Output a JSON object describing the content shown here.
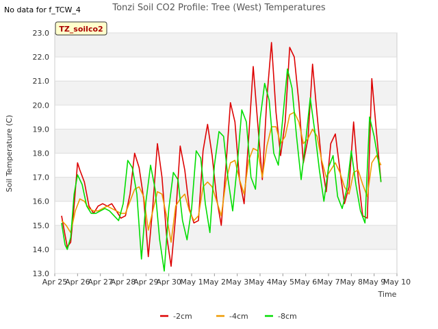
{
  "status_text": "No data for f_TCW_4",
  "badge_label": "TZ_soilco2",
  "chart_data": {
    "type": "line",
    "title": "Tonzi Soil CO2 Profile: Tree (West) Temperatures",
    "xlabel": "Time",
    "ylabel": "Soil Temperature (C)",
    "ylim": [
      13.0,
      23.0
    ],
    "xlim": [
      0,
      15
    ],
    "yticks": [
      "13.0",
      "14.0",
      "15.0",
      "16.0",
      "17.0",
      "18.0",
      "19.0",
      "20.0",
      "21.0",
      "22.0",
      "23.0"
    ],
    "xticks": [
      "Apr 25",
      "Apr 26",
      "Apr 27",
      "Apr 28",
      "Apr 29",
      "Apr 30",
      "May 1",
      "May 2",
      "May 3",
      "May 4",
      "May 5",
      "May 6",
      "May 7",
      "May 8",
      "May 9",
      "May 10"
    ],
    "grid": true,
    "legend_position": "bottom",
    "series": [
      {
        "name": "-2cm",
        "color": "#dd0000",
        "x": [
          0.3,
          0.45,
          0.55,
          0.7,
          0.85,
          1.0,
          1.1,
          1.3,
          1.5,
          1.7,
          1.9,
          2.1,
          2.3,
          2.5,
          2.7,
          2.9,
          3.1,
          3.3,
          3.5,
          3.7,
          3.9,
          4.1,
          4.3,
          4.5,
          4.7,
          4.9,
          5.1,
          5.3,
          5.5,
          5.7,
          5.9,
          6.1,
          6.3,
          6.5,
          6.7,
          6.9,
          7.1,
          7.3,
          7.5,
          7.7,
          7.9,
          8.1,
          8.3,
          8.5,
          8.7,
          8.9,
          9.1,
          9.3,
          9.5,
          9.7,
          9.9,
          10.1,
          10.3,
          10.5,
          10.7,
          10.9,
          11.1,
          11.3,
          11.5,
          11.7,
          11.9,
          12.1,
          12.3,
          12.5,
          12.7,
          12.9,
          13.1,
          13.3,
          13.5,
          13.7,
          13.9,
          14.1,
          14.3
        ],
        "y": [
          15.4,
          14.6,
          14.1,
          14.3,
          15.8,
          17.6,
          17.3,
          16.8,
          15.8,
          15.5,
          15.8,
          15.9,
          15.8,
          15.9,
          15.6,
          15.3,
          15.4,
          16.3,
          18.0,
          17.4,
          16.1,
          13.7,
          15.8,
          18.4,
          17.0,
          14.6,
          13.3,
          15.4,
          18.3,
          17.3,
          15.7,
          15.1,
          15.2,
          18.1,
          19.2,
          17.9,
          16.1,
          15.0,
          17.4,
          20.1,
          19.3,
          16.9,
          15.9,
          18.6,
          21.6,
          19.2,
          16.9,
          20.3,
          22.6,
          19.7,
          17.9,
          19.3,
          22.4,
          22.0,
          20.1,
          17.6,
          18.6,
          21.7,
          19.6,
          17.6,
          16.4,
          18.4,
          18.8,
          17.3,
          15.9,
          16.6,
          19.3,
          17.0,
          15.4,
          15.3,
          21.1,
          18.9,
          16.8
        ]
      },
      {
        "name": "-4cm",
        "color": "#ee9900",
        "x": [
          0.3,
          0.5,
          0.7,
          0.9,
          1.1,
          1.3,
          1.5,
          1.7,
          1.9,
          2.1,
          2.3,
          2.5,
          2.7,
          2.9,
          3.1,
          3.3,
          3.5,
          3.7,
          3.9,
          4.1,
          4.3,
          4.5,
          4.7,
          4.9,
          5.1,
          5.3,
          5.5,
          5.7,
          5.9,
          6.1,
          6.3,
          6.5,
          6.7,
          6.9,
          7.1,
          7.3,
          7.5,
          7.7,
          7.9,
          8.1,
          8.3,
          8.5,
          8.7,
          8.9,
          9.1,
          9.3,
          9.5,
          9.7,
          9.9,
          10.1,
          10.3,
          10.5,
          10.7,
          10.9,
          11.1,
          11.3,
          11.5,
          11.7,
          11.9,
          12.1,
          12.3,
          12.5,
          12.7,
          12.9,
          13.1,
          13.3,
          13.5,
          13.7,
          13.9,
          14.1,
          14.3
        ],
        "y": [
          15.2,
          15.0,
          14.7,
          15.6,
          16.1,
          16.0,
          15.7,
          15.6,
          15.6,
          15.7,
          15.8,
          15.7,
          15.6,
          15.5,
          15.5,
          16.0,
          16.5,
          16.6,
          16.2,
          14.8,
          15.6,
          16.4,
          16.3,
          15.4,
          14.3,
          15.8,
          16.1,
          16.3,
          15.6,
          15.2,
          15.4,
          16.6,
          16.8,
          16.6,
          16.0,
          15.4,
          16.8,
          17.6,
          17.7,
          16.9,
          16.3,
          17.7,
          18.2,
          18.1,
          17.0,
          18.3,
          19.1,
          19.1,
          18.4,
          18.7,
          19.6,
          19.7,
          19.3,
          18.4,
          18.6,
          19.0,
          18.7,
          17.7,
          17.0,
          17.3,
          17.6,
          17.2,
          16.6,
          16.3,
          17.2,
          17.3,
          16.7,
          16.2,
          17.6,
          17.9,
          17.5
        ]
      },
      {
        "name": "-8cm",
        "color": "#00dd00",
        "x": [
          0.3,
          0.45,
          0.55,
          0.7,
          0.85,
          1.0,
          1.2,
          1.4,
          1.6,
          1.8,
          2.0,
          2.2,
          2.4,
          2.6,
          2.8,
          3.0,
          3.2,
          3.4,
          3.6,
          3.8,
          4.0,
          4.2,
          4.4,
          4.6,
          4.8,
          5.0,
          5.2,
          5.4,
          5.6,
          5.8,
          6.0,
          6.2,
          6.4,
          6.6,
          6.8,
          7.0,
          7.2,
          7.4,
          7.6,
          7.8,
          8.0,
          8.2,
          8.4,
          8.6,
          8.8,
          9.0,
          9.2,
          9.4,
          9.6,
          9.8,
          10.0,
          10.2,
          10.4,
          10.6,
          10.8,
          11.0,
          11.2,
          11.4,
          11.6,
          11.8,
          12.0,
          12.2,
          12.4,
          12.6,
          12.8,
          13.0,
          13.2,
          13.4,
          13.6,
          13.8,
          14.0,
          14.2,
          14.3
        ],
        "y": [
          15.1,
          14.2,
          14.0,
          14.5,
          16.3,
          17.1,
          16.7,
          15.8,
          15.5,
          15.5,
          15.6,
          15.7,
          15.6,
          15.4,
          15.2,
          15.9,
          17.7,
          17.4,
          16.3,
          13.6,
          16.0,
          17.5,
          16.5,
          14.4,
          13.1,
          15.7,
          17.2,
          16.9,
          15.2,
          14.4,
          15.7,
          18.1,
          17.8,
          15.9,
          14.7,
          17.5,
          18.9,
          18.7,
          16.9,
          15.6,
          17.5,
          19.8,
          19.3,
          17.0,
          16.5,
          19.4,
          20.9,
          20.2,
          18.0,
          17.5,
          19.5,
          21.5,
          20.7,
          18.7,
          16.9,
          18.5,
          20.3,
          18.9,
          17.3,
          16.0,
          17.4,
          17.9,
          16.2,
          15.7,
          16.5,
          18.1,
          16.7,
          15.6,
          15.1,
          19.5,
          18.7,
          17.6,
          16.8
        ]
      }
    ]
  }
}
